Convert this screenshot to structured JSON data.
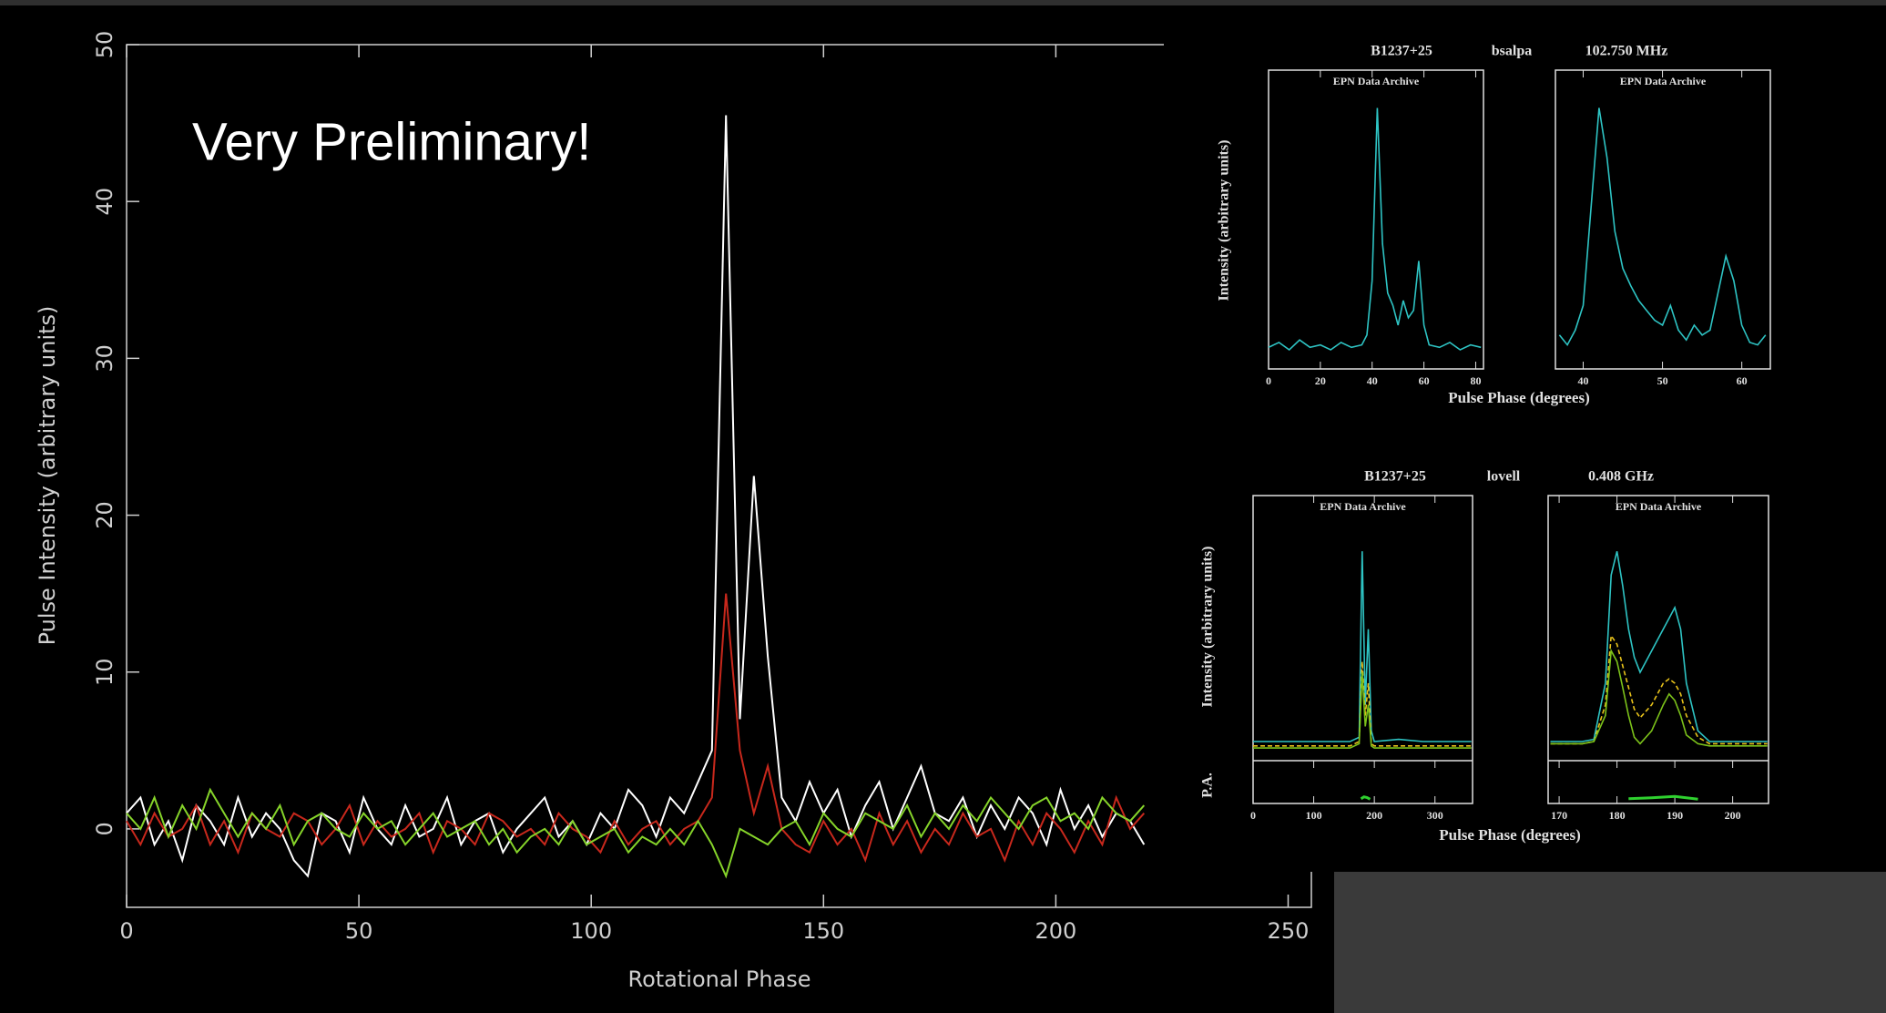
{
  "chart_data": [
    {
      "type": "line",
      "annotation": "Very Preliminary!",
      "xlabel": "Rotational Phase",
      "ylabel": "Pulse Intensity (arbitrary units)",
      "xlim": [
        0,
        255
      ],
      "ylim": [
        -5,
        50
      ],
      "xticks": [
        0,
        50,
        100,
        150,
        200,
        250
      ],
      "yticks": [
        0,
        10,
        20,
        30,
        40,
        50
      ],
      "x": [
        0,
        3,
        6,
        9,
        12,
        15,
        18,
        21,
        24,
        27,
        30,
        33,
        36,
        39,
        42,
        45,
        48,
        51,
        54,
        57,
        60,
        63,
        66,
        69,
        72,
        75,
        78,
        81,
        84,
        87,
        90,
        93,
        96,
        99,
        102,
        105,
        108,
        111,
        114,
        117,
        120,
        123,
        126,
        129,
        132,
        135,
        138,
        141,
        144,
        147,
        150,
        153,
        156,
        159,
        162,
        165,
        168,
        171,
        174,
        177,
        180,
        183,
        186,
        189,
        192,
        195,
        198,
        201,
        204,
        207,
        210,
        213,
        216,
        219
      ],
      "series": [
        {
          "color": "#ffffff",
          "values": [
            1,
            2,
            -1,
            0.5,
            -2,
            1.5,
            0.5,
            -1,
            2,
            -0.5,
            1,
            0,
            -2,
            -3,
            1,
            0.5,
            -1.5,
            2,
            0,
            -1,
            1.5,
            -0.5,
            0,
            2,
            -1,
            0.5,
            1,
            -1.5,
            0,
            1,
            2,
            -0.5,
            0.5,
            -1,
            1,
            0,
            2.5,
            1.5,
            -0.5,
            2,
            1,
            3,
            5,
            45.5,
            7,
            22.5,
            11,
            2,
            0.5,
            3,
            1,
            2.5,
            -0.5,
            1.5,
            3,
            0,
            2,
            4,
            1,
            0.5,
            2,
            -0.5,
            1.5,
            0,
            2,
            1,
            -1,
            2.5,
            0,
            1.5,
            -0.5,
            1,
            0.5,
            -1
          ]
        },
        {
          "color": "#c8281c",
          "values": [
            0.5,
            -1,
            1,
            -0.5,
            0,
            1.5,
            -1,
            0.5,
            -1.5,
            1,
            0,
            -0.5,
            1,
            0.5,
            -1,
            0,
            1.5,
            -1,
            0.5,
            -0.5,
            0,
            1,
            -1.5,
            0.5,
            0,
            -1,
            1,
            0.5,
            -0.5,
            0,
            -1,
            1,
            0,
            -0.5,
            -1.5,
            0.5,
            -1,
            0,
            0.5,
            -1,
            0,
            0.5,
            2,
            15,
            5,
            1,
            4,
            0,
            -1,
            -1.5,
            0.5,
            -1,
            0,
            -2,
            1,
            -1,
            0.5,
            -1.5,
            0,
            -1,
            1,
            -0.5,
            0,
            -2,
            0.5,
            -1,
            1,
            0,
            -1.5,
            0.5,
            -1,
            2,
            0,
            1
          ]
        },
        {
          "color": "#86d42a",
          "values": [
            1,
            0,
            2,
            -0.5,
            1.5,
            0,
            2.5,
            1,
            -0.5,
            1,
            0,
            1.5,
            -1,
            0.5,
            1,
            0,
            -0.5,
            1,
            0,
            0.5,
            -1,
            0,
            1,
            -0.5,
            0,
            0.5,
            -1,
            0,
            -1.5,
            -0.5,
            0,
            -1,
            0.5,
            -1,
            -0.5,
            0,
            -1.5,
            -0.5,
            -1,
            0,
            -1,
            0.5,
            -1,
            -3,
            0,
            -0.5,
            -1,
            0,
            0.5,
            -1,
            1,
            0,
            -0.5,
            1,
            0.5,
            0,
            1.5,
            -0.5,
            1,
            0,
            1.5,
            0.5,
            2,
            1,
            0,
            1.5,
            2,
            0.5,
            1,
            0,
            2,
            1,
            0.5,
            1.5
          ]
        }
      ]
    },
    {
      "type": "line",
      "title": [
        "B1237+25",
        "bsalpa",
        "102.750 MHz"
      ],
      "subtitle": "EPN Data Archive",
      "xlabel": "Pulse Phase (degrees)",
      "ylabel": "Intensity (arbitrary units)",
      "xlim": [
        0,
        83
      ],
      "ylim": [
        -5,
        105
      ],
      "xticks": [
        0,
        20,
        40,
        60,
        80
      ],
      "x": [
        0,
        4,
        8,
        12,
        16,
        20,
        24,
        28,
        32,
        36,
        38,
        40,
        42,
        44,
        46,
        48,
        50,
        52,
        54,
        56,
        58,
        60,
        62,
        66,
        70,
        74,
        78,
        82
      ],
      "series": [
        {
          "color": "#2ec4c4",
          "values": [
            3,
            5,
            2,
            6,
            3,
            4,
            2,
            5,
            3,
            4,
            8,
            30,
            100,
            45,
            25,
            20,
            12,
            22,
            15,
            18,
            38,
            12,
            4,
            3,
            5,
            2,
            4,
            3
          ]
        }
      ]
    },
    {
      "type": "line",
      "subtitle": "EPN Data Archive",
      "xlim": [
        36.5,
        63.6
      ],
      "ylim": [
        -5,
        105
      ],
      "xticks": [
        40,
        50,
        60
      ],
      "x": [
        37,
        38,
        39,
        40,
        41,
        42,
        43,
        44,
        45,
        46,
        47,
        48,
        49,
        50,
        51,
        52,
        53,
        54,
        55,
        56,
        57,
        58,
        59,
        60,
        61,
        62,
        63
      ],
      "series": [
        {
          "color": "#2ec4c4",
          "values": [
            8,
            4,
            10,
            20,
            60,
            100,
            80,
            50,
            35,
            28,
            22,
            18,
            14,
            12,
            20,
            10,
            6,
            12,
            8,
            10,
            25,
            40,
            30,
            12,
            5,
            4,
            8
          ]
        }
      ]
    },
    {
      "type": "line",
      "title": [
        "B1237+25",
        "lovell",
        "0.408 GHz"
      ],
      "subtitle": "EPN Data Archive",
      "xlabel": "Pulse Phase (degrees)",
      "ylabel": "Intensity (arbitrary units)",
      "pa_label": "P.A.",
      "xlim": [
        0,
        362
      ],
      "ylim": [
        -5,
        105
      ],
      "palim": [
        -90,
        90
      ],
      "xticks": [
        0,
        100,
        200,
        300
      ],
      "x": [
        0,
        40,
        80,
        120,
        160,
        175,
        180,
        185,
        190,
        195,
        200,
        240,
        280,
        320,
        360
      ],
      "series": [
        {
          "color": "#2ec4c4",
          "values": [
            3,
            3,
            3,
            3,
            3,
            5,
            91,
            20,
            55,
            8,
            3,
            4,
            3,
            3,
            3
          ]
        },
        {
          "color": "#e8c21a",
          "dash": true,
          "values": [
            1,
            1,
            1,
            1,
            1,
            3,
            40,
            15,
            30,
            2,
            1,
            1,
            1,
            1,
            1
          ]
        },
        {
          "color": "#7cc21a",
          "values": [
            0,
            0,
            0,
            0,
            0,
            2,
            35,
            10,
            20,
            1,
            0,
            0,
            0,
            0,
            0
          ]
        }
      ],
      "pa": {
        "color": "#2fd12f",
        "x": [
          178,
          183,
          188,
          193
        ],
        "values": [
          -70,
          -62,
          -65,
          -72
        ]
      }
    },
    {
      "type": "line",
      "subtitle": "EPN Data Archive",
      "xlim": [
        168.1,
        206.2
      ],
      "ylim": [
        -5,
        105
      ],
      "palim": [
        -90,
        90
      ],
      "xticks": [
        170,
        180,
        190,
        200
      ],
      "x": [
        168.5,
        170,
        172,
        174,
        176,
        178,
        179,
        180,
        181,
        182,
        183,
        184,
        186,
        188,
        189,
        190,
        191,
        192,
        194,
        196,
        198,
        200,
        202,
        204,
        206
      ],
      "series": [
        {
          "color": "#2ec4c4",
          "values": [
            3,
            3,
            3,
            3,
            4,
            30,
            80,
            91,
            75,
            55,
            42,
            35,
            45,
            55,
            60,
            65,
            55,
            30,
            8,
            3,
            3,
            3,
            3,
            3,
            3
          ]
        },
        {
          "color": "#e8c21a",
          "dash": true,
          "values": [
            2,
            2,
            2,
            2,
            3,
            20,
            52,
            48,
            38,
            28,
            18,
            14,
            20,
            30,
            32,
            30,
            25,
            15,
            5,
            2,
            2,
            2,
            2,
            2,
            2
          ]
        },
        {
          "color": "#7cc21a",
          "values": [
            2,
            2,
            2,
            2,
            3,
            15,
            45,
            40,
            28,
            15,
            5,
            2,
            8,
            20,
            25,
            22,
            15,
            6,
            2,
            1,
            1,
            1,
            1,
            1,
            1
          ]
        }
      ],
      "pa": {
        "color": "#2fd12f",
        "x": [
          182,
          186,
          190,
          194
        ],
        "values": [
          -70,
          -66,
          -60,
          -72
        ]
      }
    }
  ]
}
